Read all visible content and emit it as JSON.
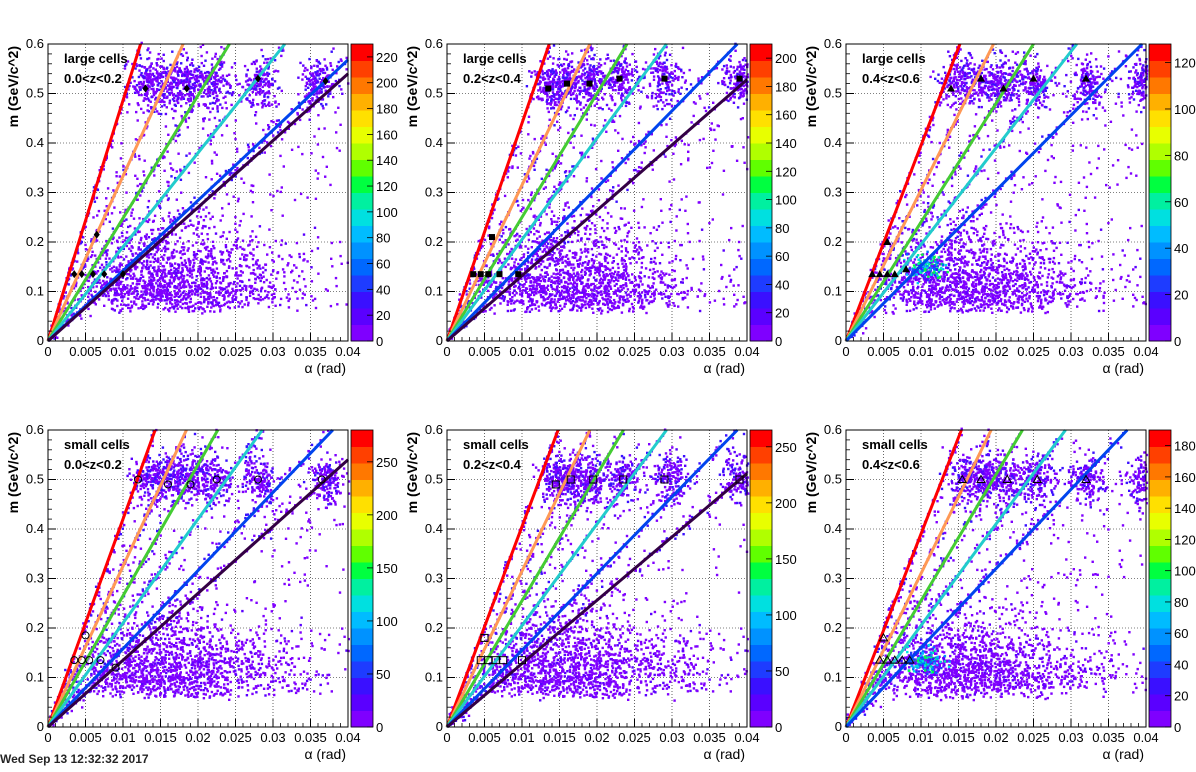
{
  "footer": "Wed Sep 13 12:32:32 2017",
  "palette": [
    "#7f00ff",
    "#5a00ff",
    "#3a10ff",
    "#1e3cff",
    "#0068ff",
    "#0092ff",
    "#00bcff",
    "#00e0e0",
    "#00f0a0",
    "#00ff40",
    "#60ff00",
    "#b0ff00",
    "#e8ff00",
    "#ffe000",
    "#ffb000",
    "#ff7800",
    "#ff4000",
    "#ff0000"
  ],
  "line_colors": [
    "#ff0000",
    "#ff9955",
    "#44cc33",
    "#22cccc",
    "#0044ee",
    "#330044"
  ],
  "chart_data": [
    {
      "type": "heatmap",
      "row": 0,
      "col": 0,
      "title_lines": [
        "large cells",
        "0.0<z<0.2"
      ],
      "xlabel": "α (rad)",
      "ylabel": "m (GeV/c^2)",
      "xlim": [
        0,
        0.04
      ],
      "ylim": [
        0,
        0.6
      ],
      "xticks": [
        "0",
        "0.005",
        "0.01",
        "0.015",
        "0.02",
        "0.025",
        "0.03",
        "0.035",
        "0.04"
      ],
      "yticks": [
        "0",
        "0.1",
        "0.2",
        "0.3",
        "0.4",
        "0.5",
        "0.6"
      ],
      "zticks": [
        "0",
        "20",
        "40",
        "60",
        "80",
        "100",
        "120",
        "140",
        "160",
        "180",
        "200",
        "220"
      ],
      "zmax": 230,
      "line_slopes": [
        48.6,
        33.3,
        24.8,
        19.0,
        14.2,
        13.5
      ],
      "clusters": [
        [
          0.013,
          0.52
        ],
        [
          0.016,
          0.52
        ],
        [
          0.0185,
          0.52
        ],
        [
          0.022,
          0.52
        ],
        [
          0.028,
          0.52
        ],
        [
          0.036,
          0.52
        ]
      ],
      "markers": [
        [
          0.0035,
          0.135
        ],
        [
          0.0045,
          0.135
        ],
        [
          0.006,
          0.135
        ],
        [
          0.0075,
          0.135
        ],
        [
          0.01,
          0.135
        ],
        [
          0.0065,
          0.215
        ],
        [
          0.013,
          0.51
        ],
        [
          0.0185,
          0.51
        ],
        [
          0.028,
          0.53
        ],
        [
          0.037,
          0.525
        ]
      ],
      "marker_style": "diamond"
    },
    {
      "type": "heatmap",
      "row": 0,
      "col": 1,
      "title_lines": [
        "large cells",
        "0.2<z<0.4"
      ],
      "xlabel": "α (rad)",
      "ylabel": "m (GeV/c^2)",
      "xlim": [
        0,
        0.04
      ],
      "ylim": [
        0,
        0.6
      ],
      "xticks": [
        "0",
        "0.005",
        "0.01",
        "0.015",
        "0.02",
        "0.025",
        "0.03",
        "0.035",
        "0.04"
      ],
      "yticks": [
        "0",
        "0.1",
        "0.2",
        "0.3",
        "0.4",
        "0.5",
        "0.6"
      ],
      "zticks": [
        "0",
        "20",
        "40",
        "60",
        "80",
        "100",
        "120",
        "140",
        "160",
        "180",
        "200"
      ],
      "zmax": 210,
      "line_slopes": [
        44.0,
        31.5,
        25.0,
        20.5,
        15.5,
        13.2
      ],
      "clusters": [
        [
          0.0135,
          0.52
        ],
        [
          0.016,
          0.52
        ],
        [
          0.019,
          0.52
        ],
        [
          0.023,
          0.53
        ],
        [
          0.029,
          0.53
        ],
        [
          0.039,
          0.53
        ]
      ],
      "markers": [
        [
          0.0035,
          0.135
        ],
        [
          0.0045,
          0.135
        ],
        [
          0.0055,
          0.135
        ],
        [
          0.007,
          0.135
        ],
        [
          0.0095,
          0.135
        ],
        [
          0.006,
          0.21
        ],
        [
          0.0135,
          0.51
        ],
        [
          0.016,
          0.52
        ],
        [
          0.019,
          0.52
        ],
        [
          0.023,
          0.53
        ],
        [
          0.029,
          0.53
        ],
        [
          0.039,
          0.53
        ]
      ],
      "marker_style": "square"
    },
    {
      "type": "heatmap",
      "row": 0,
      "col": 2,
      "title_lines": [
        "large cells",
        "0.4<z<0.6"
      ],
      "xlabel": "α (rad)",
      "ylabel": "m (GeV/c^2)",
      "xlim": [
        0,
        0.04
      ],
      "ylim": [
        0,
        0.6
      ],
      "xticks": [
        "0",
        "0.005",
        "0.01",
        "0.015",
        "0.02",
        "0.025",
        "0.03",
        "0.035",
        "0.04"
      ],
      "yticks": [
        "0",
        "0.1",
        "0.2",
        "0.3",
        "0.4",
        "0.5",
        "0.6"
      ],
      "zticks": [
        "0",
        "20",
        "40",
        "60",
        "80",
        "100",
        "120"
      ],
      "zmax": 128,
      "line_slopes": [
        39.5,
        30.5,
        24.0,
        19.5,
        15.2
      ],
      "clusters": [
        [
          0.0145,
          0.52
        ],
        [
          0.018,
          0.52
        ],
        [
          0.021,
          0.52
        ],
        [
          0.025,
          0.52
        ],
        [
          0.032,
          0.52
        ],
        [
          0.0395,
          0.52
        ],
        [
          0.0105,
          0.145
        ]
      ],
      "markers": [
        [
          0.0035,
          0.135
        ],
        [
          0.0045,
          0.135
        ],
        [
          0.0055,
          0.135
        ],
        [
          0.0065,
          0.135
        ],
        [
          0.008,
          0.145
        ],
        [
          0.0055,
          0.2
        ],
        [
          0.014,
          0.51
        ],
        [
          0.018,
          0.53
        ],
        [
          0.021,
          0.51
        ],
        [
          0.025,
          0.53
        ],
        [
          0.032,
          0.53
        ]
      ],
      "marker_style": "triangle"
    },
    {
      "type": "heatmap",
      "row": 1,
      "col": 0,
      "title_lines": [
        "small cells",
        "0.0<z<0.2"
      ],
      "xlabel": "α (rad)",
      "ylabel": "m (GeV/c^2)",
      "xlim": [
        0,
        0.04
      ],
      "ylim": [
        0,
        0.6
      ],
      "xticks": [
        "0",
        "0.005",
        "0.01",
        "0.015",
        "0.02",
        "0.025",
        "0.03",
        "0.035",
        "0.04"
      ],
      "yticks": [
        "0",
        "0.1",
        "0.2",
        "0.3",
        "0.4",
        "0.5",
        "0.6"
      ],
      "zticks": [
        "0",
        "50",
        "100",
        "150",
        "200",
        "250"
      ],
      "zmax": 280,
      "line_slopes": [
        42.0,
        32.5,
        26.5,
        21.0,
        15.8,
        13.5
      ],
      "clusters": [
        [
          0.0135,
          0.5
        ],
        [
          0.016,
          0.5
        ],
        [
          0.019,
          0.5
        ],
        [
          0.022,
          0.5
        ],
        [
          0.028,
          0.5
        ],
        [
          0.037,
          0.5
        ]
      ],
      "markers": [
        [
          0.0035,
          0.135
        ],
        [
          0.0045,
          0.135
        ],
        [
          0.0055,
          0.135
        ],
        [
          0.007,
          0.135
        ],
        [
          0.009,
          0.12
        ],
        [
          0.005,
          0.185
        ],
        [
          0.012,
          0.5
        ],
        [
          0.016,
          0.49
        ],
        [
          0.019,
          0.49
        ],
        [
          0.0225,
          0.5
        ],
        [
          0.028,
          0.5
        ],
        [
          0.0365,
          0.5
        ]
      ],
      "marker_style": "circle"
    },
    {
      "type": "heatmap",
      "row": 1,
      "col": 1,
      "title_lines": [
        "small cells",
        "0.2<z<0.4"
      ],
      "xlabel": "α (rad)",
      "ylabel": "m (GeV/c^2)",
      "xlim": [
        0,
        0.04
      ],
      "ylim": [
        0,
        0.6
      ],
      "xticks": [
        "0",
        "0.005",
        "0.01",
        "0.015",
        "0.02",
        "0.025",
        "0.03",
        "0.035",
        "0.04"
      ],
      "yticks": [
        "0",
        "0.1",
        "0.2",
        "0.3",
        "0.4",
        "0.5",
        "0.6"
      ],
      "zticks": [
        "0",
        "50",
        "100",
        "150",
        "200",
        "250"
      ],
      "zmax": 265,
      "line_slopes": [
        40.5,
        31.5,
        25.5,
        20.5,
        15.5,
        12.8
      ],
      "clusters": [
        [
          0.0145,
          0.5
        ],
        [
          0.0165,
          0.5
        ],
        [
          0.019,
          0.5
        ],
        [
          0.0235,
          0.5
        ],
        [
          0.0295,
          0.5
        ],
        [
          0.039,
          0.5
        ]
      ],
      "markers": [
        [
          0.0045,
          0.135
        ],
        [
          0.0055,
          0.135
        ],
        [
          0.0065,
          0.135
        ],
        [
          0.0075,
          0.135
        ],
        [
          0.01,
          0.135
        ],
        [
          0.005,
          0.18
        ],
        [
          0.0145,
          0.49
        ],
        [
          0.0165,
          0.5
        ],
        [
          0.0195,
          0.5
        ],
        [
          0.0235,
          0.5
        ],
        [
          0.029,
          0.5
        ],
        [
          0.039,
          0.5
        ]
      ],
      "marker_style": "hatched"
    },
    {
      "type": "heatmap",
      "row": 1,
      "col": 2,
      "title_lines": [
        "small cells",
        "0.4<z<0.6"
      ],
      "xlabel": "α (rad)",
      "ylabel": "m (GeV/c^2)",
      "xlim": [
        0,
        0.04
      ],
      "ylim": [
        0,
        0.6
      ],
      "xticks": [
        "0",
        "0.005",
        "0.01",
        "0.015",
        "0.02",
        "0.025",
        "0.03",
        "0.035",
        "0.04"
      ],
      "yticks": [
        "0",
        "0.1",
        "0.2",
        "0.3",
        "0.4",
        "0.5",
        "0.6"
      ],
      "zticks": [
        "0",
        "20",
        "40",
        "60",
        "80",
        "100",
        "120",
        "140",
        "160",
        "180"
      ],
      "zmax": 190,
      "line_slopes": [
        39.0,
        31.0,
        25.5,
        20.5,
        16.0
      ],
      "clusters": [
        [
          0.016,
          0.5
        ],
        [
          0.0185,
          0.5
        ],
        [
          0.0215,
          0.5
        ],
        [
          0.0255,
          0.5
        ],
        [
          0.032,
          0.5
        ],
        [
          0.0395,
          0.5
        ],
        [
          0.0105,
          0.13
        ]
      ],
      "markers": [
        [
          0.0045,
          0.135
        ],
        [
          0.0055,
          0.135
        ],
        [
          0.0065,
          0.135
        ],
        [
          0.0075,
          0.135
        ],
        [
          0.0085,
          0.135
        ],
        [
          0.005,
          0.18
        ],
        [
          0.0155,
          0.5
        ],
        [
          0.018,
          0.5
        ],
        [
          0.0215,
          0.5
        ],
        [
          0.0255,
          0.5
        ],
        [
          0.032,
          0.5
        ]
      ],
      "marker_style": "open-triangle"
    }
  ]
}
